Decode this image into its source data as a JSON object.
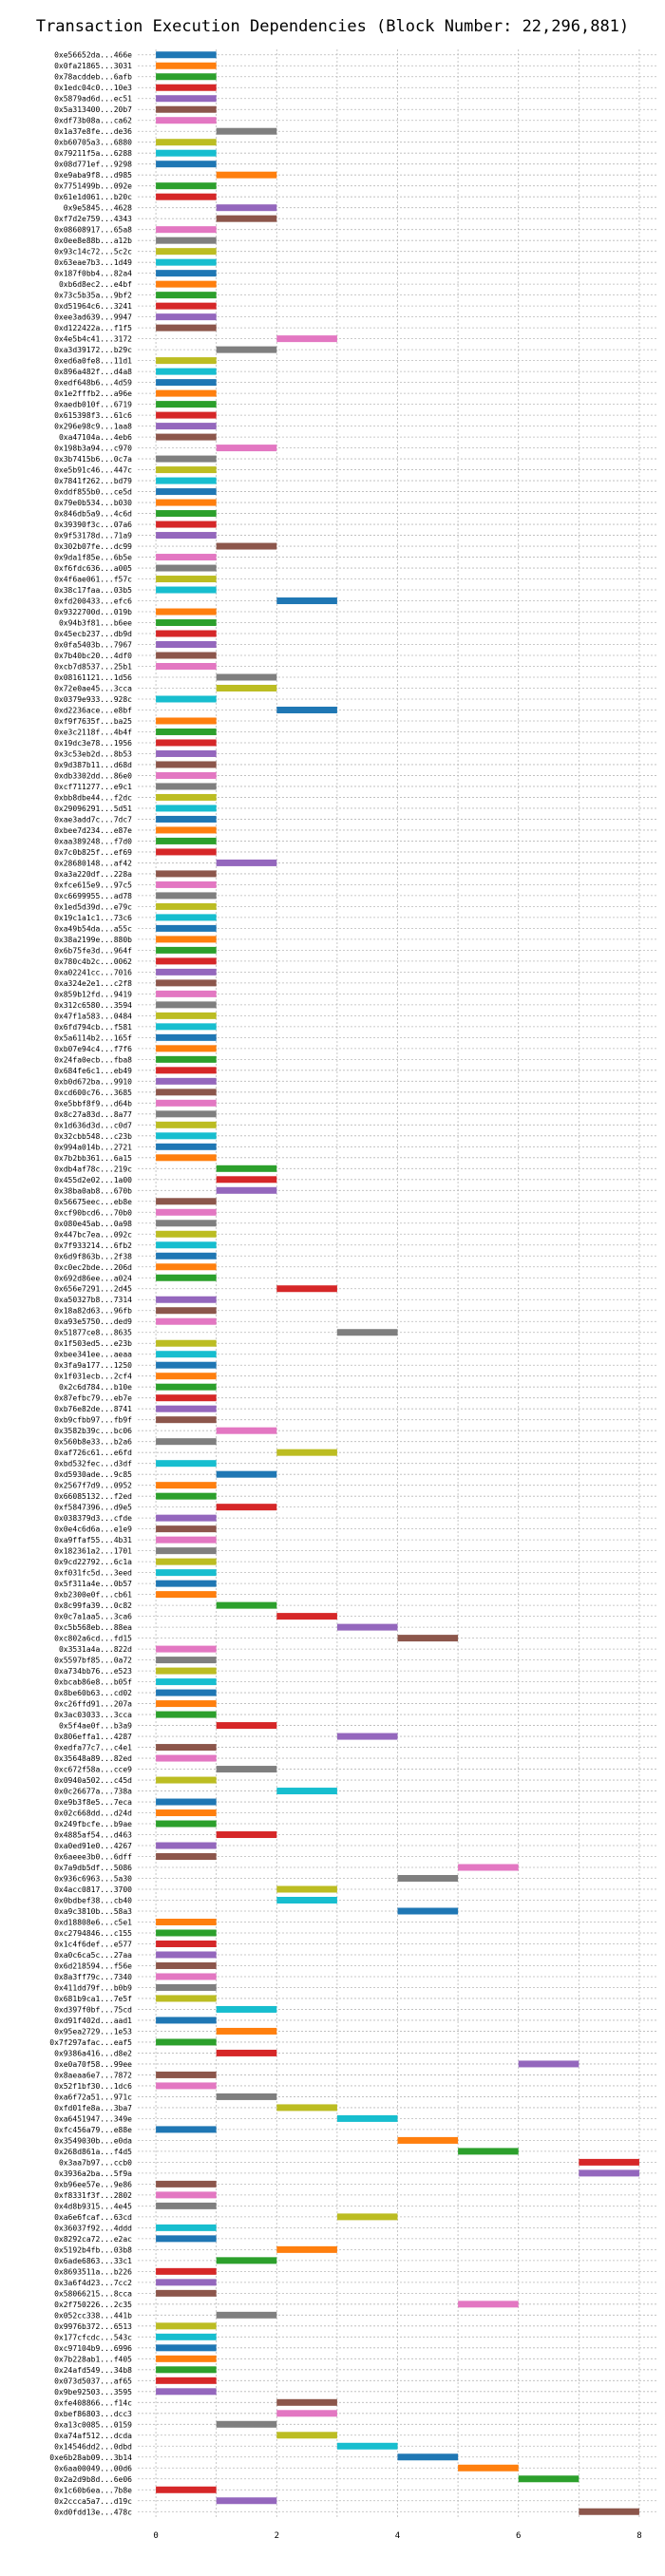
{
  "chart_data": {
    "type": "bar",
    "orientation": "horizontal",
    "title": "Transaction Execution Dependencies (Block Number: 22,296,881)",
    "xlabel": "",
    "ylabel": "",
    "xlim": [
      -0.3,
      8.3
    ],
    "xticks": [
      0,
      2,
      4,
      6,
      8
    ],
    "grid": true,
    "legend": "none",
    "bar_width_units": 1,
    "palette": [
      "#1f77b4",
      "#ff7f0e",
      "#2ca02c",
      "#d62728",
      "#9467bd",
      "#8c564b",
      "#e377c2",
      "#7f7f7f",
      "#bcbd22",
      "#17becf"
    ],
    "categories": [
      "0xe56652da...466e",
      "0x0fa21865...3031",
      "0x78acddeb...6afb",
      "0x1edc04c0...10e3",
      "0x5879ad6d...ec51",
      "0x5a313400...20b7",
      "0xdf73b08a...ca62",
      "0x1a37e8fe...de36",
      "0xb60705a3...6880",
      "0x79211f5a...6288",
      "0x08d771ef...9298",
      "0xe9aba9f8...d985",
      "0x7751499b...092e",
      "0x61e1d061...b20c",
      "0x9e5845...4628",
      "0xf7d2e759...4343",
      "0x08608917...65a8",
      "0x0ee8e88b...a12b",
      "0x93c14c72...5c2c",
      "0x63eae7b3...1d49",
      "0x187f0bb4...82a4",
      "0xb6d8ec2...e4bf",
      "0x73c5b35a...9bf2",
      "0xd51964c6...3241",
      "0xee3ad639...9947",
      "0xd122422a...f1f5",
      "0x4e5b4c41...3172",
      "0xa3d39172...b29c",
      "0xed6a0fe8...11d1",
      "0x896a482f...d4a8",
      "0xedf648b6...4d59",
      "0x1e2fffb2...a96e",
      "0xaedb010f...6719",
      "0x615398f3...61c6",
      "0x296e98c9...1aa8",
      "0xa47104a...4eb6",
      "0x198b3a94...c970",
      "0x3b7415b6...0c7a",
      "0xe5b91c46...447c",
      "0x7841f262...bd79",
      "0xddf855b0...ce5d",
      "0x79e0b534...b030",
      "0x846db5a9...4c6d",
      "0x39390f3c...07a6",
      "0x9f53178d...71a9",
      "0x302b07fe...dc99",
      "0x9da1f85e...6b5e",
      "0xf6fdc636...a005",
      "0x4f6ae061...f57c",
      "0x38c17faa...03b5",
      "0xfd200433...efc6",
      "0x9322700d...019b",
      "0x94b3f81...b6ee",
      "0x45ecb237...db9d",
      "0x0fa5403b...7967",
      "0x7b40bc20...4df0",
      "0xcb7d8537...25b1",
      "0x08161121...1d56",
      "0x72e0ae45...3cca",
      "0x0379e933...928c",
      "0xd2236ace...e8bf",
      "0xf9f7635f...ba25",
      "0xe3c2118f...4b4f",
      "0x19dc3e78...1956",
      "0x3c53eb2d...8b53",
      "0x9d387b11...d68d",
      "0xdb3302dd...86e0",
      "0xcf711277...e9c1",
      "0xbb8dbe44...f2dc",
      "0x29096291...5d51",
      "0xae3add7c...7dc7",
      "0xbee7d234...e87e",
      "0xaa389248...f7d0",
      "0x7c0b825f...ef69",
      "0x28680148...af42",
      "0xa3a220df...228a",
      "0xfce615e9...97c5",
      "0xc6699955...ad78",
      "0x1ed5d39d...e79c",
      "0x19c1a1c1...73c6",
      "0xa49b54da...a55c",
      "0x38a2199e...880b",
      "0x6b75fe3d...964f",
      "0x780c4b2c...0062",
      "0xa02241cc...7016",
      "0xa324e2e1...c2f8",
      "0x859b12fd...9419",
      "0x312c6580...3594",
      "0x47f1a583...0484",
      "0x6fd794cb...f581",
      "0x5a6114b2...165f",
      "0xb07e94c4...f7f6",
      "0x24fa0ecb...fba8",
      "0x684fe6c1...eb49",
      "0xb0d672ba...9910",
      "0xcd600c76...3685",
      "0xe5bbf8f9...d64b",
      "0x8c27a83d...8a77",
      "0x1d636d3d...c0d7",
      "0x32cbb548...c23b",
      "0x994a014b...2721",
      "0x7b2bb361...6a15",
      "0xdb4af78c...219c",
      "0x455d2e02...1a00",
      "0x38ba0ab8...670b",
      "0x56675eec...eb8e",
      "0xcf90bcd6...70b0",
      "0x080e45ab...0a98",
      "0x447bc7ea...092c",
      "0x7f933214...6fb2",
      "0x6d9f863b...2f38",
      "0xc0ec2bde...206d",
      "0x692d86ee...a024",
      "0x656e7291...2d45",
      "0xa50327b8...7314",
      "0x18a82d63...96fb",
      "0xa93e5750...ded9",
      "0x51877ce8...8635",
      "0x1f503ed5...e23b",
      "0xbee341ee...aeaa",
      "0x3fa9a177...1250",
      "0x1f031ecb...2cf4",
      "0x2c6d784...b10e",
      "0x87efbc79...eb7e",
      "0xb76e82de...8741",
      "0xb9cfbb97...fb9f",
      "0x3582b39c...bc06",
      "0x560b8e33...b2a6",
      "0xaf726c61...e6fd",
      "0xbd532fec...d3df",
      "0xd5930ade...9c85",
      "0x2567f7d9...0952",
      "0x66085132...f2ed",
      "0xf5847396...d9e5",
      "0x038379d3...cfde",
      "0x0e4c6d6a...e1e9",
      "0xa9ffaf55...4b31",
      "0x182361a2...1701",
      "0x9cd22792...6c1a",
      "0xf031fc5d...3eed",
      "0x5f311a4e...0b57",
      "0xb2300e0f...cb61",
      "0x8c99fa39...0c82",
      "0x0c7a1aa5...3ca6",
      "0xc5b568eb...88ea",
      "0xc802a6cd...fd15",
      "0x3531a4a...822d",
      "0x5597bf85...0a72",
      "0xa734bb76...e523",
      "0xbcab86e8...b05f",
      "0x8be60b63...cd02",
      "0xc26ffd91...207a",
      "0x3ac03033...3cca",
      "0x5f4ae0f...b3a9",
      "0x806effa1...4287",
      "0xedfa77c7...c4e1",
      "0x35648a89...82ed",
      "0xc672f58a...cce9",
      "0x0940a502...c45d",
      "0x0c26677a...738a",
      "0xe9b3f8e5...7eca",
      "0x02c668dd...d24d",
      "0x249fbcfe...b9ae",
      "0x4885af54...d463",
      "0xa0ed91e0...4267",
      "0x6aeee3b0...6dff",
      "0x7a9db5df...5086",
      "0x936c6963...5a30",
      "0x4acc0817...3700",
      "0x0bdbef38...cb40",
      "0xa9c3810b...58a3",
      "0xd18808e6...c5e1",
      "0xc2794846...c155",
      "0x1c4f6def...e577",
      "0xa0c6ca5c...27aa",
      "0x6d218594...f56e",
      "0x8a3ff79c...7340",
      "0x411dd79f...b0b9",
      "0x681b9ca1...7e5f",
      "0xd397f0bf...75cd",
      "0xd91f402d...aad1",
      "0x95ea2729...1e53",
      "0x7f297afac...eaf5",
      "0x9386a416...d8e2",
      "0xe0a70f58...99ee",
      "0x8aeaa6e7...7872",
      "0x52f1bf30...1dc6",
      "0xa6f72a51...971c",
      "0xfd01fe8a...3ba7",
      "0xa6451947...349e",
      "0xfc456a79...e88e",
      "0x3549030b...e0da",
      "0x268d861a...f4d5",
      "0x3aa7b97...ccb0",
      "0x3936a2ba...5f9a",
      "0xb96ee57e...9e86",
      "0xf8331f3f...2802",
      "0x4d8b9315...4e45",
      "0xa6e6fcaf...63cd",
      "0x36037f92...4ddd",
      "0x8292ca72...e2ac",
      "0x5192b4fb...03b8",
      "0x6ade6863...33c1",
      "0x8693511a...b226",
      "0x3a6f4d23...7cc2",
      "0x58066215...8cca",
      "0x2f750226...2c35",
      "0x052cc338...441b",
      "0x9976b372...6513",
      "0x177cfcdc...543c",
      "0xc97104b9...6996",
      "0x7b228ab1...f405",
      "0x24afd549...34b8",
      "0x073d5037...af65",
      "0x9be92503...3595",
      "0xfe408866...f14c",
      "0xbef86803...dcc3",
      "0xa13c0085...0159",
      "0xa74af512...dcda",
      "0x14546dd2...0dbd",
      "0xe6b28ab09...3b14",
      "0x6aa00049...00d6",
      "0x2a2d9b8d...6e06",
      "0x1c60b6ea...7b8e",
      "0x2ccca5a7...d19c",
      "0xd0fdd13e...478c"
    ],
    "starts": [
      0,
      0,
      0,
      0,
      0,
      0,
      0,
      1,
      0,
      0,
      0,
      1,
      0,
      0,
      1,
      1,
      0,
      0,
      0,
      0,
      0,
      0,
      0,
      0,
      0,
      0,
      2,
      1,
      0,
      0,
      0,
      0,
      0,
      0,
      0,
      0,
      1,
      0,
      0,
      0,
      0,
      0,
      0,
      0,
      0,
      1,
      0,
      0,
      0,
      0,
      2,
      0,
      0,
      0,
      0,
      0,
      0,
      1,
      1,
      0,
      2,
      0,
      0,
      0,
      0,
      0,
      0,
      0,
      0,
      0,
      0,
      0,
      0,
      0,
      1,
      0,
      0,
      0,
      0,
      0,
      0,
      0,
      0,
      0,
      0,
      0,
      0,
      0,
      0,
      0,
      0,
      0,
      0,
      0,
      0,
      0,
      0,
      0,
      0,
      0,
      0,
      0,
      1,
      1,
      1,
      0,
      0,
      0,
      0,
      0,
      0,
      0,
      0,
      2,
      0,
      0,
      0,
      3,
      0,
      0,
      0,
      0,
      0,
      0,
      0,
      0,
      1,
      0,
      2,
      0,
      1,
      0,
      0,
      1,
      0,
      0,
      0,
      0,
      0,
      0,
      0,
      0,
      1,
      2,
      3,
      4,
      0,
      0,
      0,
      0,
      0,
      0,
      0,
      1,
      3,
      0,
      0,
      1,
      0,
      2,
      0,
      0,
      0,
      1,
      0,
      0,
      5,
      4,
      2,
      2,
      4,
      0,
      0,
      0,
      0,
      0,
      0,
      0,
      0,
      1,
      0,
      1,
      0,
      1,
      6,
      0,
      0,
      1,
      2,
      3,
      0,
      4,
      5,
      7,
      7,
      0,
      0,
      0,
      3,
      0,
      0,
      2,
      1,
      0,
      0,
      0,
      5,
      1,
      0,
      0,
      0,
      0,
      0,
      0,
      0,
      2,
      2,
      1,
      2,
      3,
      4,
      5,
      6,
      0,
      1,
      7
    ]
  }
}
